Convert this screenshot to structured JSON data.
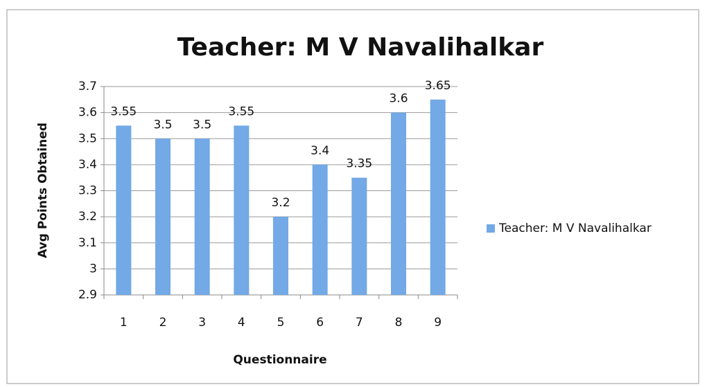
{
  "chart_data": {
    "type": "bar",
    "title": "Teacher: M V Navalihalkar",
    "x_label": "Questionnaire",
    "y_label": "Avg Points Obtained",
    "categories": [
      "1",
      "2",
      "3",
      "4",
      "5",
      "6",
      "7",
      "8",
      "9"
    ],
    "series": [
      {
        "name": "Teacher: M V Navalihalkar",
        "color": "#72a9e6",
        "values": [
          3.55,
          3.5,
          3.5,
          3.55,
          3.2,
          3.4,
          3.35,
          3.6,
          3.65
        ]
      }
    ],
    "ylim": [
      2.9,
      3.7
    ],
    "yticks": [
      2.9,
      3,
      3.1,
      3.2,
      3.3,
      3.4,
      3.5,
      3.6,
      3.7
    ],
    "grid": true,
    "legend": "right"
  }
}
